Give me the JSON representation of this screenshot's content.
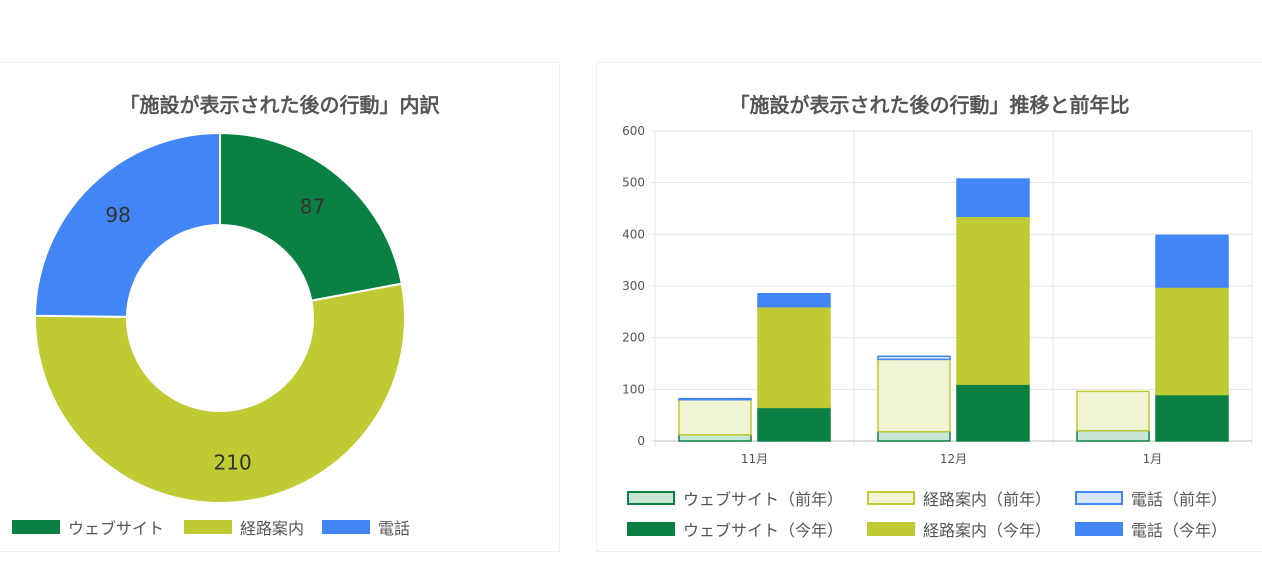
{
  "colors": {
    "web": "#0a8043",
    "route": "#c0ca33",
    "phone": "#4285f4",
    "web_prev_fill": "#c8e6d5",
    "route_prev_fill": "#f0f4d4",
    "phone_prev_fill": "#d6e6fb"
  },
  "chart_data": [
    {
      "type": "pie",
      "subtype": "donut",
      "title": "「施設が表示された後の行動」内訳",
      "labels": [
        "ウェブサイト",
        "経路案内",
        "電話"
      ],
      "values": [
        87,
        210,
        98
      ],
      "legend": "bottom"
    },
    {
      "type": "bar",
      "stacked": true,
      "title": "「施設が表示された後の行動」推移と前年比",
      "categories": [
        "11月",
        "12月",
        "1月"
      ],
      "ylim": [
        0,
        600
      ],
      "yticks": [
        "0",
        "100",
        "200",
        "300",
        "400",
        "500",
        "600"
      ],
      "grid": true,
      "legend": "bottom",
      "series": [
        {
          "name": "ウェブサイト（前年）",
          "stack": "prev",
          "values": [
            12,
            18,
            20
          ]
        },
        {
          "name": "経路案内（前年）",
          "stack": "prev",
          "values": [
            68,
            140,
            76
          ]
        },
        {
          "name": "電話（前年）",
          "stack": "prev",
          "values": [
            2,
            6,
            0
          ]
        },
        {
          "name": "ウェブサイト（今年）",
          "stack": "curr",
          "values": [
            65,
            110,
            90
          ]
        },
        {
          "name": "経路案内（今年）",
          "stack": "curr",
          "values": [
            195,
            325,
            208
          ]
        },
        {
          "name": "電話（今年）",
          "stack": "curr",
          "values": [
            25,
            72,
            100
          ]
        }
      ]
    }
  ]
}
